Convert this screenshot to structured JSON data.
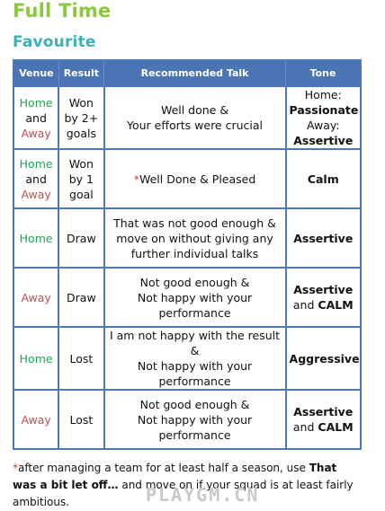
{
  "title": "Full Time",
  "subtitle": "Favourite",
  "columns": [
    "Venue",
    "Result",
    "Recommended Talk",
    "Tone"
  ],
  "rows": [
    {
      "venue": [
        {
          "text": "Home",
          "color": "home"
        },
        {
          "text": "and",
          "color": "plain"
        },
        {
          "text": "Away",
          "color": "away"
        }
      ],
      "result": [
        "Won",
        "by 2+",
        "goals"
      ],
      "talk": {
        "star": "",
        "lines": [
          "Well done &",
          "Your efforts were crucial"
        ]
      },
      "tone": [
        {
          "text": "Home:",
          "bold": false
        },
        {
          "text": "Passionate",
          "bold": true
        },
        {
          "text": "Away:",
          "bold": false
        },
        {
          "text": "Assertive",
          "bold": true
        }
      ]
    },
    {
      "venue": [
        {
          "text": "Home",
          "color": "home"
        },
        {
          "text": "and",
          "color": "plain"
        },
        {
          "text": "Away",
          "color": "away"
        }
      ],
      "result": [
        "Won",
        "by 1",
        "goal"
      ],
      "talk": {
        "star": "*",
        "lines": [
          "Well Done & Pleased"
        ]
      },
      "tone": [
        {
          "text": "Calm",
          "bold": true
        }
      ]
    },
    {
      "venue": [
        {
          "text": "Home",
          "color": "home"
        }
      ],
      "result": [
        "Draw"
      ],
      "talk": {
        "star": "",
        "lines": [
          "That was not good enough &",
          "move on without giving any",
          "further individual talks"
        ]
      },
      "tone": [
        {
          "text": "Assertive",
          "bold": true
        }
      ]
    },
    {
      "venue": [
        {
          "text": "Away",
          "color": "away"
        }
      ],
      "result": [
        "Draw"
      ],
      "talk": {
        "star": "",
        "lines": [
          "Not good enough &",
          "Not happy with your",
          "performance"
        ]
      },
      "tone": [
        {
          "text": "Assertive",
          "bold": true
        },
        {
          "text": "and ",
          "bold": false,
          "inline": true
        },
        {
          "text": "CALM",
          "bold": true,
          "inline": true
        }
      ]
    },
    {
      "venue": [
        {
          "text": "Home",
          "color": "home"
        }
      ],
      "result": [
        "Lost"
      ],
      "talk": {
        "star": "",
        "lines": [
          "I am not happy with the result &",
          "Not happy with your",
          "performance"
        ]
      },
      "tone": [
        {
          "text": "Aggressive",
          "bold": true
        }
      ]
    },
    {
      "venue": [
        {
          "text": "Away",
          "color": "away"
        }
      ],
      "result": [
        "Lost"
      ],
      "talk": {
        "star": "",
        "lines": [
          "Not good enough &",
          "Not happy with your",
          "performance"
        ]
      },
      "tone": [
        {
          "text": "Assertive",
          "bold": true
        },
        {
          "text": "and ",
          "bold": false,
          "inline": true
        },
        {
          "text": "CALM",
          "bold": true,
          "inline": true
        }
      ]
    }
  ],
  "footnote": {
    "star": "*",
    "text1": "after managing a team for at least half a season, use ",
    "bold1": "That was a bit let off…",
    "text2": " and move on if your squad is at least fairly ambitious."
  },
  "watermark": "PLAYGM.CN",
  "colors": {
    "title": "#8dc63f",
    "subtitle": "#3bb0b9",
    "header_bg": "#4a74b4",
    "home": "#1ea453",
    "away": "#c0504d",
    "star": "#d23b2f"
  }
}
